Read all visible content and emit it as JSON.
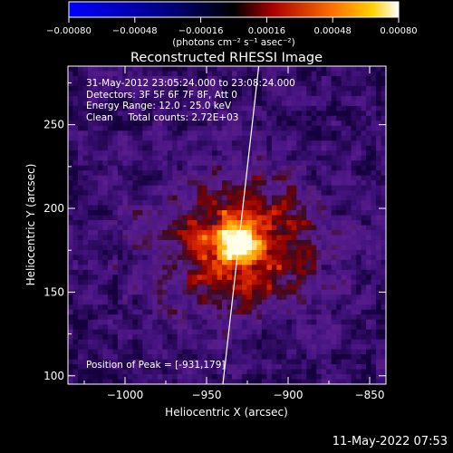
{
  "chart_data": {
    "type": "heatmap",
    "title": "Reconstructed RHESSI Image",
    "xlabel": "Heliocentric X (arcsec)",
    "ylabel": "Heliocentric Y (arcsec)",
    "xlim": [
      -1035,
      -840
    ],
    "ylim": [
      95,
      285
    ],
    "x_ticks": [
      -1000,
      -950,
      -900,
      -850
    ],
    "x_tick_labels": [
      "−1000",
      "−950",
      "−900",
      "−850"
    ],
    "y_ticks": [
      100,
      150,
      200,
      250
    ],
    "y_tick_labels": [
      "100",
      "150",
      "200",
      "250"
    ],
    "peak": {
      "x": -931,
      "y": 179
    },
    "colorbar": {
      "range": [
        -0.0008,
        0.0008
      ],
      "ticks": [
        -0.0008,
        -0.00048,
        -0.00016,
        0.00016,
        0.00048,
        0.0008
      ],
      "tick_labels": [
        "−0.00080",
        "−0.00048",
        "−0.00016",
        "0.00016",
        "0.00048",
        "0.00080"
      ],
      "unit_label": "(photons cm⁻² s⁻¹ asec⁻²)",
      "colors": [
        "#0000ff",
        "#000000",
        "#cc0000",
        "#ffa000",
        "#ffffff"
      ]
    },
    "limb_line": {
      "points": [
        [
          -940,
          95
        ],
        [
          -918,
          285
        ]
      ]
    }
  },
  "info": {
    "time_range": "31-May-2012 23:05:24.000 to 23:08:24.000",
    "detectors": "Detectors: 3F 5F 6F 7F 8F, Att 0",
    "energy": "Energy Range: 12.0 - 25.0 keV",
    "clean": "Clean     Total counts: 2.72E+03",
    "peak_text": "Position of Peak = [-931,179]"
  },
  "timestamp": "11-May-2022 07:53"
}
